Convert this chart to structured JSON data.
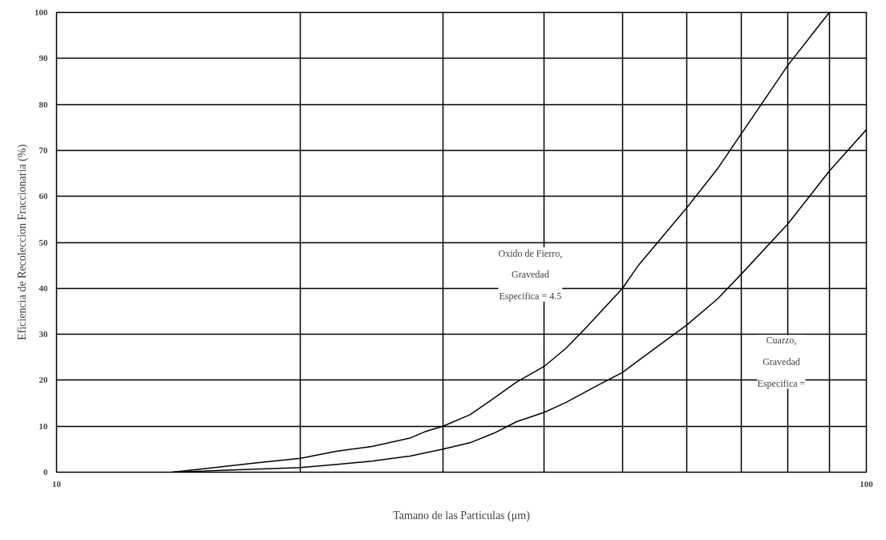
{
  "chart_data": {
    "type": "line",
    "xlabel": "Tamano de las Particulas (μm)",
    "ylabel": "Eficiencia de Recoleccion Fraccionaria (%)",
    "log": "x",
    "xlim": [
      10,
      100
    ],
    "xticks": [
      10,
      {
        "value": 20,
        "label": null
      },
      {
        "value": 30,
        "label": null
      },
      {
        "value": 40,
        "label": null
      },
      {
        "value": 50,
        "label": null
      },
      {
        "value": 60,
        "label": null
      },
      {
        "value": 70,
        "label": null
      },
      {
        "value": 80,
        "label": null
      },
      {
        "value": 90,
        "label": null
      },
      100
    ],
    "ylim": [
      0,
      100
    ],
    "yticks": [
      0,
      10,
      20,
      30,
      40,
      50,
      60,
      70,
      80,
      90,
      100
    ],
    "grid": true,
    "marker": "none",
    "line_style": "solid",
    "series": [
      {
        "color": "#000000",
        "x": [
          13.9,
          17.6,
          20,
          22.2,
          24.5,
          27.3,
          28.5,
          30,
          32.4,
          34.5,
          37,
          40,
          42.6,
          45.1,
          50,
          52.3,
          60,
          65.5,
          70,
          80,
          90
        ],
        "values": [
          0,
          2,
          3,
          4.6,
          5.6,
          7.4,
          8.8,
          10,
          12.5,
          15.8,
          19.6,
          23,
          27,
          31.5,
          40,
          45,
          57.5,
          66,
          73.5,
          88.5,
          100
        ]
      },
      {
        "color": "#000000",
        "x": [
          13.9,
          20,
          22.2,
          24.5,
          27.3,
          30,
          32.4,
          34.7,
          37,
          40,
          42.6,
          46.7,
          50,
          52.5,
          60,
          65.5,
          70,
          80,
          90,
          100
        ],
        "values": [
          0,
          1,
          1.7,
          2.4,
          3.5,
          5,
          6.4,
          8.5,
          11,
          13,
          15.2,
          19,
          21.7,
          24.5,
          32,
          37.7,
          43,
          54,
          65.5,
          74.5
        ]
      }
    ],
    "annotations": [
      "Oxido de Fierro,\nGravedad\nEspecifica = 4.5",
      "Cuarzo,\nGravedad\nEspecifica ="
    ]
  }
}
